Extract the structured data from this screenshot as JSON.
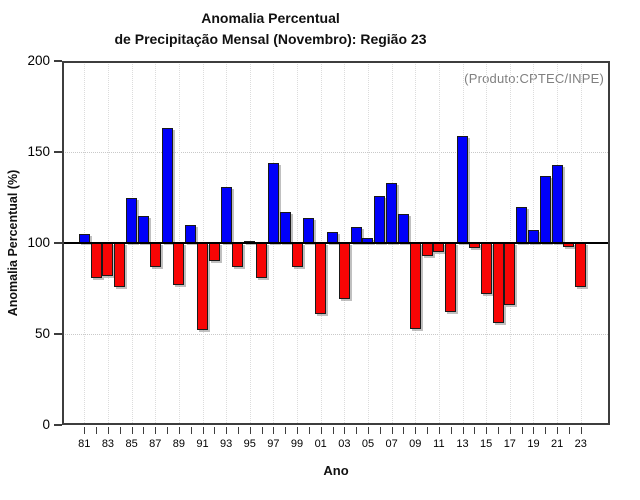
{
  "title": {
    "line1": "Anomalia Percentual",
    "line2": "de Precipitação Mensal (Novembro): Região 23"
  },
  "annotation": "(Produto:CPTEC/INPE)",
  "chart_data": {
    "type": "bar",
    "title": "Anomalia Percentual de Precipitação Mensal (Novembro): Região 23",
    "xlabel": "Ano",
    "ylabel": "Anomalia Percentual (%)",
    "ylim": [
      0,
      200
    ],
    "yticks": [
      0,
      50,
      100,
      150,
      200
    ],
    "baseline": 100,
    "grid": {
      "horizontal_dotted_at": [
        50,
        100,
        150
      ],
      "vertical_dotted_every": "2 years",
      "style": "dotted light gray"
    },
    "legend": "none",
    "categories": [
      "1981",
      "1982",
      "1983",
      "1984",
      "1985",
      "1986",
      "1987",
      "1988",
      "1989",
      "1990",
      "1991",
      "1992",
      "1993",
      "1994",
      "1995",
      "1996",
      "1997",
      "1998",
      "1999",
      "2000",
      "2001",
      "2002",
      "2003",
      "2004",
      "2005",
      "2006",
      "2007",
      "2008",
      "2009",
      "2010",
      "2011",
      "2012",
      "2013",
      "2014",
      "2015",
      "2016",
      "2017",
      "2018",
      "2019",
      "2020",
      "2021",
      "2022",
      "2023"
    ],
    "x_tick_labels": [
      "81",
      "83",
      "85",
      "87",
      "89",
      "91",
      "93",
      "95",
      "97",
      "99",
      "01",
      "03",
      "05",
      "07",
      "09",
      "11",
      "13",
      "15",
      "17",
      "19",
      "21",
      "23"
    ],
    "values": [
      105,
      81,
      82,
      76,
      125,
      115,
      87,
      163,
      77,
      110,
      52,
      90,
      131,
      87,
      101,
      81,
      144,
      117,
      87,
      114,
      61,
      106,
      69,
      109,
      103,
      126,
      133,
      116,
      53,
      93,
      95,
      62,
      159,
      97,
      72,
      56,
      66,
      120,
      107,
      137,
      143,
      98,
      76
    ],
    "colors": {
      "above_baseline": "#0000fa",
      "below_baseline": "#f80505",
      "baseline_line": "#000000",
      "frame": "#3d3d3d",
      "annotation_text": "#808080"
    }
  }
}
